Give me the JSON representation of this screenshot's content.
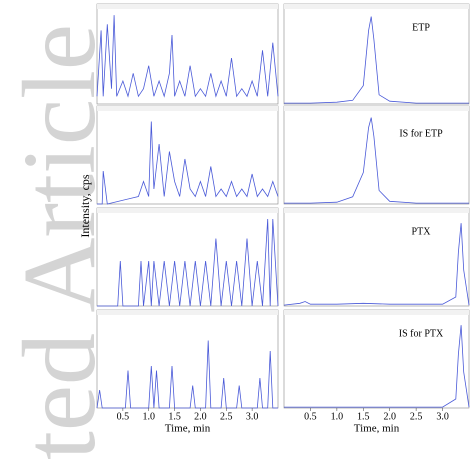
{
  "watermark": "ted Article",
  "y_label": "Intensity, cps",
  "chart_data": [
    {
      "type": "line",
      "color": "#4a5ad8",
      "xlim": [
        0,
        3.5
      ],
      "ylim": [
        0,
        60
      ],
      "x": [
        0,
        0.08,
        0.12,
        0.2,
        0.28,
        0.33,
        0.38,
        0.5,
        0.6,
        0.7,
        0.8,
        0.9,
        1.0,
        1.1,
        1.2,
        1.3,
        1.4,
        1.45,
        1.5,
        1.6,
        1.7,
        1.8,
        1.9,
        2.0,
        2.1,
        2.2,
        2.3,
        2.4,
        2.5,
        2.6,
        2.7,
        2.8,
        2.9,
        3.0,
        3.1,
        3.2,
        3.3,
        3.4,
        3.5
      ],
      "values": [
        5,
        48,
        5,
        52,
        10,
        58,
        5,
        15,
        5,
        20,
        5,
        10,
        25,
        5,
        15,
        5,
        20,
        45,
        5,
        15,
        5,
        25,
        5,
        10,
        5,
        20,
        5,
        15,
        5,
        30,
        5,
        10,
        5,
        15,
        5,
        35,
        5,
        40,
        5
      ]
    },
    {
      "type": "line",
      "color": "#4a5ad8",
      "xlim": [
        0,
        3.5
      ],
      "ylim": [
        0,
        100
      ],
      "annotation": "ETP",
      "x": [
        0,
        0.5,
        1.0,
        1.3,
        1.5,
        1.6,
        1.65,
        1.7,
        1.8,
        2.0,
        2.5,
        3.0,
        3.5
      ],
      "values": [
        1,
        1,
        2,
        4,
        20,
        80,
        95,
        70,
        10,
        3,
        1,
        1,
        1
      ]
    },
    {
      "type": "line",
      "color": "#4a5ad8",
      "xlim": [
        0,
        3.5
      ],
      "ylim": [
        0,
        60
      ],
      "x": [
        0,
        0.1,
        0.12,
        0.2,
        0.8,
        0.9,
        1.0,
        1.05,
        1.1,
        1.2,
        1.3,
        1.4,
        1.5,
        1.6,
        1.7,
        1.8,
        1.9,
        2.0,
        2.1,
        2.2,
        2.3,
        2.4,
        2.5,
        2.6,
        2.7,
        2.8,
        2.9,
        3.0,
        3.1,
        3.2,
        3.3,
        3.4,
        3.5
      ],
      "values": [
        0,
        0,
        22,
        0,
        5,
        15,
        5,
        55,
        10,
        40,
        5,
        35,
        15,
        5,
        30,
        10,
        5,
        15,
        5,
        25,
        5,
        10,
        5,
        15,
        5,
        10,
        5,
        20,
        5,
        10,
        5,
        15,
        5
      ]
    },
    {
      "type": "line",
      "color": "#4a5ad8",
      "xlim": [
        0,
        3.5
      ],
      "ylim": [
        0,
        100
      ],
      "annotation": "IS for ETP",
      "x": [
        0,
        0.5,
        1.0,
        1.3,
        1.5,
        1.6,
        1.65,
        1.7,
        1.8,
        2.0,
        2.5,
        3.0,
        3.5
      ],
      "values": [
        1,
        1,
        2,
        8,
        35,
        85,
        96,
        75,
        15,
        3,
        1,
        1,
        1
      ]
    },
    {
      "type": "line",
      "color": "#4a5ad8",
      "xlim": [
        0,
        3.5
      ],
      "ylim": [
        0,
        60
      ],
      "x": [
        0,
        0.4,
        0.45,
        0.5,
        0.8,
        0.85,
        0.9,
        1.0,
        1.05,
        1.1,
        1.2,
        1.3,
        1.4,
        1.5,
        1.6,
        1.7,
        1.8,
        1.9,
        2.0,
        2.1,
        2.2,
        2.3,
        2.4,
        2.5,
        2.6,
        2.7,
        2.8,
        2.9,
        3.0,
        3.1,
        3.2,
        3.3,
        3.35,
        3.4,
        3.5
      ],
      "values": [
        0,
        0,
        30,
        0,
        0,
        30,
        0,
        30,
        0,
        30,
        0,
        30,
        0,
        30,
        0,
        30,
        0,
        30,
        0,
        30,
        0,
        45,
        0,
        30,
        0,
        30,
        0,
        45,
        0,
        30,
        0,
        58,
        0,
        58,
        0
      ]
    },
    {
      "type": "line",
      "color": "#4a5ad8",
      "xlim": [
        0,
        3.5
      ],
      "ylim": [
        0,
        100
      ],
      "annotation": "PTX",
      "x": [
        0,
        0.3,
        0.4,
        0.5,
        1.0,
        1.5,
        2.0,
        2.5,
        3.0,
        3.25,
        3.3,
        3.35,
        3.4,
        3.5
      ],
      "values": [
        1,
        3,
        5,
        2,
        2,
        3,
        2,
        2,
        2,
        10,
        60,
        92,
        40,
        1
      ]
    },
    {
      "type": "line",
      "color": "#4a5ad8",
      "xlim": [
        0,
        3.5
      ],
      "ylim": [
        0,
        60
      ],
      "xlabel": "Time, min",
      "xticks": [
        0.5,
        {
          "value": 1,
          "label": "1.0"
        },
        1.5,
        {
          "value": 2,
          "label": "2.0"
        },
        2.5,
        {
          "value": 3,
          "label": "3.0"
        }
      ],
      "x": [
        0,
        0.05,
        0.1,
        0.55,
        0.6,
        0.65,
        1.0,
        1.05,
        1.1,
        1.15,
        1.2,
        1.4,
        1.45,
        1.5,
        1.8,
        1.85,
        1.9,
        2.1,
        2.15,
        2.2,
        2.4,
        2.45,
        2.5,
        2.7,
        2.75,
        2.8,
        3.1,
        3.15,
        3.2,
        3.3,
        3.35,
        3.4,
        3.5
      ],
      "values": [
        0,
        12,
        0,
        0,
        25,
        0,
        0,
        28,
        0,
        25,
        0,
        0,
        28,
        0,
        0,
        15,
        0,
        0,
        45,
        0,
        0,
        20,
        0,
        0,
        15,
        0,
        0,
        20,
        0,
        0,
        38,
        0,
        0
      ]
    },
    {
      "type": "line",
      "color": "#4a5ad8",
      "xlim": [
        0,
        3.5
      ],
      "ylim": [
        0,
        100
      ],
      "annotation": "IS for PTX",
      "xlabel": "Time, min",
      "xticks": [
        0.5,
        {
          "value": 1,
          "label": "1.0"
        },
        1.5,
        {
          "value": 2,
          "label": "2.0"
        },
        2.5,
        {
          "value": 3,
          "label": "3.0"
        }
      ],
      "x": [
        0,
        1.0,
        2.0,
        3.0,
        3.25,
        3.3,
        3.35,
        3.4,
        3.5
      ],
      "values": [
        1,
        1,
        1,
        1,
        10,
        60,
        92,
        40,
        1
      ]
    }
  ]
}
